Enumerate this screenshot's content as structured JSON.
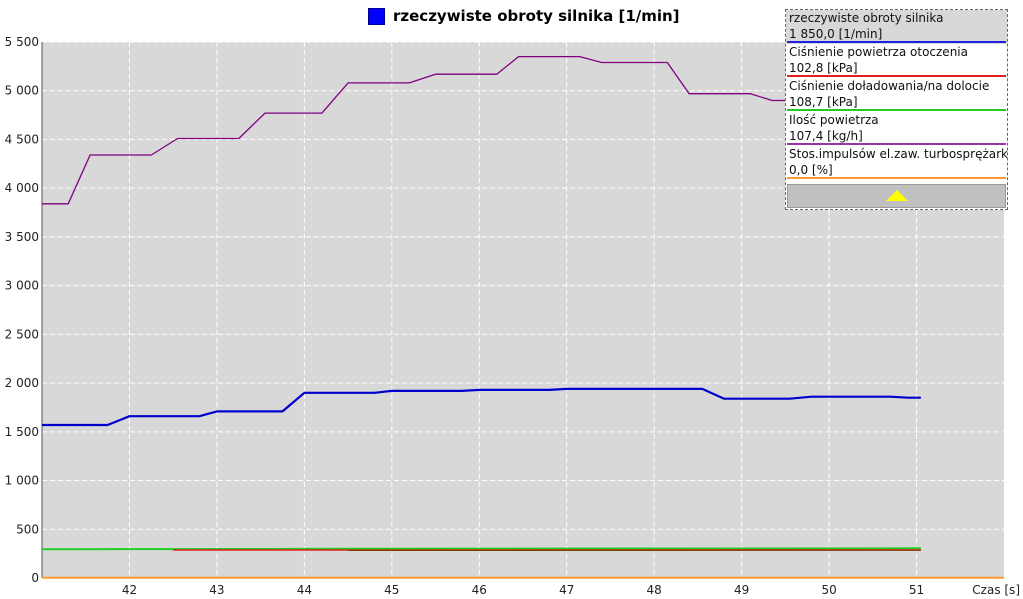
{
  "title": "rzeczywiste obroty silnika [1/min]",
  "title_color": "#0000ff",
  "legend": {
    "items": [
      {
        "name": "rzeczywiste obroty silnika",
        "value": "1 850,0 [1/min]",
        "color": "#2020e0",
        "active": true
      },
      {
        "name": "Ciśnienie powietrza otoczenia",
        "value": "102,8 [kPa]",
        "color": "#e02020",
        "active": false
      },
      {
        "name": "Ciśnienie doładowania/na dolocie",
        "value": "108,7 [kPa]",
        "color": "#22cc22",
        "active": false
      },
      {
        "name": "Ilość powietrza",
        "value": "107,4 [kg/h]",
        "color": "#9933aa",
        "active": false
      },
      {
        "name": "Stos.impulsów el.zaw. turbosprężarki",
        "value": "0,0 [%]",
        "color": "#ff9933",
        "active": false
      }
    ],
    "scroll_arrow_color": "#ffff00"
  },
  "chart_data": {
    "type": "line",
    "title": "rzeczywiste obroty silnika [1/min]",
    "xlabel": "Czas [s]",
    "ylabel": "",
    "xlim": [
      41.0,
      52.0
    ],
    "ylim": [
      0,
      5500
    ],
    "x_ticks": [
      42,
      43,
      44,
      45,
      46,
      47,
      48,
      49,
      50,
      51
    ],
    "y_ticks": [
      {
        "value": 0,
        "label": "0"
      },
      {
        "value": 500,
        "label": "500"
      },
      {
        "value": 1000,
        "label": "1 000"
      },
      {
        "value": 1500,
        "label": "1 500"
      },
      {
        "value": 2000,
        "label": "2 000"
      },
      {
        "value": 2500,
        "label": "2 500"
      },
      {
        "value": 3000,
        "label": "3 000"
      },
      {
        "value": 3500,
        "label": "3 500"
      },
      {
        "value": 4000,
        "label": "4 000"
      },
      {
        "value": 4500,
        "label": "4 500"
      },
      {
        "value": 5000,
        "label": "5 000"
      },
      {
        "value": 5500,
        "label": "5 500"
      }
    ],
    "grid": true,
    "plot_background": "#d8d8d8",
    "series": [
      {
        "name": "Ilość powietrza",
        "color": "#800080",
        "width": 1.3,
        "points": [
          [
            41.0,
            3840
          ],
          [
            41.3,
            3840
          ],
          [
            41.55,
            4340
          ],
          [
            42.25,
            4340
          ],
          [
            42.55,
            4510
          ],
          [
            43.25,
            4510
          ],
          [
            43.55,
            4770
          ],
          [
            44.2,
            4770
          ],
          [
            44.5,
            5080
          ],
          [
            45.2,
            5080
          ],
          [
            45.5,
            5170
          ],
          [
            46.2,
            5170
          ],
          [
            46.45,
            5350
          ],
          [
            47.15,
            5350
          ],
          [
            47.4,
            5290
          ],
          [
            48.15,
            5290
          ],
          [
            48.4,
            4970
          ],
          [
            49.1,
            4970
          ],
          [
            49.35,
            4900
          ],
          [
            49.55,
            4900
          ]
        ]
      },
      {
        "name": "rzeczywiste obroty silnika",
        "color": "#0000cd",
        "width": 2.2,
        "points": [
          [
            41.0,
            1570
          ],
          [
            41.75,
            1570
          ],
          [
            42.0,
            1660
          ],
          [
            42.8,
            1660
          ],
          [
            43.0,
            1710
          ],
          [
            43.75,
            1710
          ],
          [
            44.0,
            1900
          ],
          [
            44.8,
            1900
          ],
          [
            45.0,
            1920
          ],
          [
            45.8,
            1920
          ],
          [
            46.0,
            1930
          ],
          [
            46.8,
            1930
          ],
          [
            47.0,
            1940
          ],
          [
            48.55,
            1940
          ],
          [
            48.8,
            1840
          ],
          [
            49.55,
            1840
          ],
          [
            49.8,
            1860
          ],
          [
            50.7,
            1860
          ],
          [
            50.9,
            1850
          ],
          [
            51.05,
            1850
          ]
        ]
      },
      {
        "name": "Ciśnienie doładowania/na dolocie",
        "color": "#22cc22",
        "width": 2,
        "points": [
          [
            41.0,
            295
          ],
          [
            42.5,
            297
          ],
          [
            44.5,
            300
          ],
          [
            51.05,
            305
          ]
        ]
      },
      {
        "name": "Ciśnienie powietrza otoczenia",
        "color": "#e02020",
        "width": 1.5,
        "points": [
          [
            42.5,
            287
          ],
          [
            51.05,
            288
          ]
        ]
      },
      {
        "name": "Ciśnienie powietrza otoczenia (2)",
        "color": "#804000",
        "width": 1.2,
        "points": [
          [
            44.5,
            283
          ],
          [
            51.05,
            284
          ]
        ]
      },
      {
        "name": "Stos.impulsów el.zaw. turbosprężarki",
        "color": "#ff9933",
        "width": 2,
        "points": [
          [
            41.0,
            2
          ],
          [
            52.0,
            2
          ]
        ]
      }
    ]
  }
}
